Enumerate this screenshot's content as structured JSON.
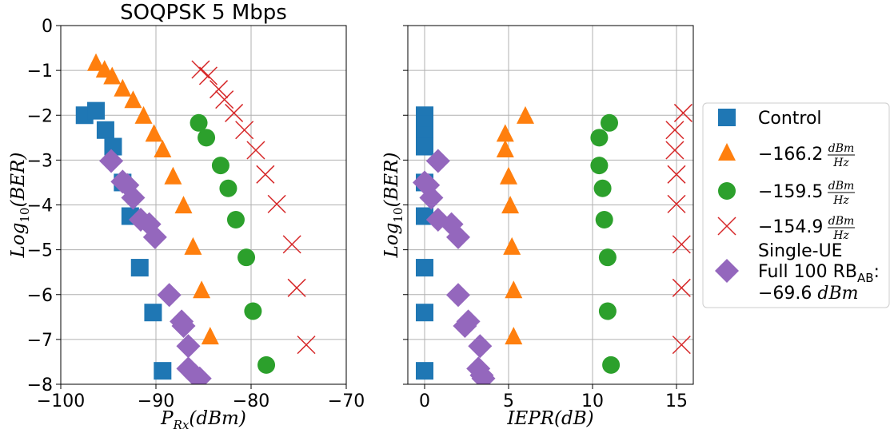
{
  "chart_data": [
    {
      "type": "scatter",
      "title": "SOQPSK 5 Mbps",
      "xlabel_main": "P",
      "xlabel_sub": "Rx",
      "xlabel_tail": "(dBm)",
      "ylabel_main": "Log",
      "ylabel_sub": "10",
      "ylabel_tail": "(BER)",
      "xlim": [
        -100,
        -70
      ],
      "ylim": [
        -8,
        0
      ],
      "xticks": [
        -100,
        -90,
        -80,
        -70
      ],
      "xtick_labels": [
        "−100",
        "−90",
        "−80",
        "−70"
      ],
      "yticks": [
        0,
        -1,
        -2,
        -3,
        -4,
        -5,
        -6,
        -7,
        -8
      ],
      "ytick_labels": [
        "0",
        "−1",
        "−2",
        "−3",
        "−4",
        "−5",
        "−6",
        "−7",
        "−8"
      ],
      "grid": true,
      "series": [
        {
          "name": "Control",
          "marker": "square",
          "color": "#1f77b4",
          "x": [
            -97.5,
            -96.3,
            -95.3,
            -94.5,
            -93.5,
            -92.7,
            -91.7,
            -90.3,
            -89.3
          ],
          "y": [
            -2.0,
            -1.9,
            -2.33,
            -2.7,
            -3.5,
            -4.25,
            -5.4,
            -6.4,
            -7.7
          ]
        },
        {
          "name": "−166.2",
          "marker": "triangle",
          "color": "#ff7f0e",
          "x": [
            -96.3,
            -95.4,
            -94.6,
            -93.5,
            -92.4,
            -91.3,
            -90.2,
            -89.3,
            -88.2,
            -87.1,
            -86.1,
            -85.2,
            -84.3
          ],
          "y": [
            -0.85,
            -1.0,
            -1.15,
            -1.42,
            -1.68,
            -2.03,
            -2.43,
            -2.78,
            -3.38,
            -4.03,
            -4.95,
            -5.92,
            -6.95
          ]
        },
        {
          "name": "−159.5",
          "marker": "circle",
          "color": "#2ca02c",
          "x": [
            -85.5,
            -84.7,
            -83.2,
            -82.4,
            -81.6,
            -80.5,
            -79.8,
            -78.4
          ],
          "y": [
            -2.17,
            -2.5,
            -3.12,
            -3.63,
            -4.33,
            -5.17,
            -6.37,
            -7.57
          ]
        },
        {
          "name": "−154.9",
          "marker": "x",
          "color": "#d62728",
          "x": [
            -85.3,
            -84.5,
            -83.4,
            -82.8,
            -81.8,
            -80.7,
            -79.5,
            -78.5,
            -77.3,
            -75.7,
            -75.2,
            -74.2
          ],
          "y": [
            -0.98,
            -1.12,
            -1.42,
            -1.65,
            -1.95,
            -2.33,
            -2.78,
            -3.32,
            -3.98,
            -4.88,
            -5.85,
            -7.12
          ]
        },
        {
          "name": "Single-UE",
          "marker": "diamond",
          "color": "#9467bd",
          "x": [
            -94.7,
            -93.5,
            -93.0,
            -92.4,
            -91.6,
            -90.7,
            -90.1,
            -88.6,
            -87.3,
            -87.1,
            -86.6,
            -86.6,
            -85.9,
            -85.4
          ],
          "y": [
            -3.02,
            -3.48,
            -3.56,
            -3.84,
            -4.33,
            -4.43,
            -4.72,
            -6.01,
            -6.6,
            -6.7,
            -7.15,
            -7.65,
            -7.8,
            -7.87
          ]
        }
      ]
    },
    {
      "type": "scatter",
      "xlabel_main": "IEPR(dB)",
      "ylabel_main": "Log",
      "ylabel_sub": "10",
      "ylabel_tail": "(BER)",
      "xlim": [
        -1,
        16
      ],
      "ylim": [
        -8,
        0
      ],
      "xticks": [
        0,
        5,
        10,
        15
      ],
      "xtick_labels": [
        "0",
        "5",
        "10",
        "15"
      ],
      "yticks": [
        0,
        -1,
        -2,
        -3,
        -4,
        -5,
        -6,
        -7,
        -8
      ],
      "grid": true,
      "series": [
        {
          "name": "Control",
          "marker": "square",
          "color": "#1f77b4",
          "x": [
            0,
            0,
            0,
            0,
            0,
            0,
            0,
            0,
            0
          ],
          "y": [
            -2.0,
            -2.2,
            -2.45,
            -2.7,
            -3.5,
            -4.25,
            -5.4,
            -6.4,
            -7.7
          ]
        },
        {
          "name": "−166.2",
          "marker": "triangle",
          "color": "#ff7f0e",
          "x": [
            6.0,
            4.8,
            4.8,
            5.0,
            5.1,
            5.2,
            5.3,
            5.3
          ],
          "y": [
            -2.03,
            -2.43,
            -2.78,
            -3.38,
            -4.03,
            -4.95,
            -5.92,
            -6.95
          ]
        },
        {
          "name": "−159.5",
          "marker": "circle",
          "color": "#2ca02c",
          "x": [
            11.0,
            10.4,
            10.4,
            10.6,
            10.7,
            10.9,
            10.9,
            11.1
          ],
          "y": [
            -2.17,
            -2.5,
            -3.12,
            -3.63,
            -4.33,
            -5.17,
            -6.37,
            -7.57
          ]
        },
        {
          "name": "−154.9",
          "marker": "x",
          "color": "#d62728",
          "x": [
            15.4,
            14.9,
            14.9,
            15.0,
            15.0,
            15.3,
            15.3,
            15.3
          ],
          "y": [
            -1.95,
            -2.33,
            -2.78,
            -3.32,
            -3.98,
            -4.88,
            -5.85,
            -7.12
          ]
        },
        {
          "name": "Single-UE",
          "marker": "diamond",
          "color": "#9467bd",
          "x": [
            0.8,
            0.0,
            0.2,
            0.4,
            0.8,
            1.6,
            2.0,
            2.0,
            2.4,
            2.6,
            3.3,
            3.2,
            3.4,
            3.5
          ],
          "y": [
            -3.02,
            -3.5,
            -3.56,
            -3.84,
            -4.33,
            -4.43,
            -4.72,
            -6.01,
            -6.7,
            -6.6,
            -7.15,
            -7.65,
            -7.8,
            -7.87
          ]
        }
      ]
    }
  ],
  "legend": {
    "placement": "center-right",
    "entries": [
      {
        "marker": "square",
        "color": "#1f77b4",
        "lines": [
          "Control"
        ]
      },
      {
        "marker": "triangle",
        "color": "#ff7f0e",
        "lines": [
          "−166.2"
        ],
        "frac_num": "dBm",
        "frac_den": "Hz"
      },
      {
        "marker": "circle",
        "color": "#2ca02c",
        "lines": [
          "−159.5"
        ],
        "frac_num": "dBm",
        "frac_den": "Hz"
      },
      {
        "marker": "x",
        "color": "#d62728",
        "lines": [
          "−154.9"
        ],
        "frac_num": "dBm",
        "frac_den": "Hz"
      },
      {
        "marker": "diamond",
        "color": "#9467bd",
        "lines": [
          "Single-UE",
          "Full 100 RB",
          "−69.6 "
        ],
        "sub": "AB",
        "sub_tail": ":",
        "unit": "dBm"
      }
    ]
  }
}
